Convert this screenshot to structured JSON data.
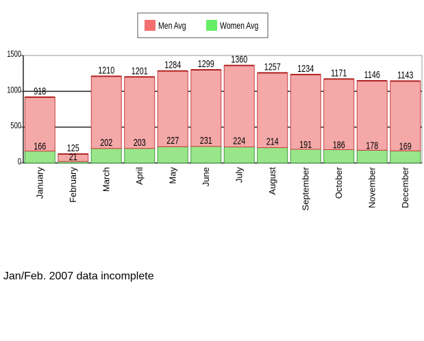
{
  "chart_data": {
    "type": "bar",
    "stacked": true,
    "title": "",
    "xlabel": "",
    "ylabel": "",
    "ylim": [
      0,
      1500
    ],
    "yticks": [
      0,
      500,
      1000,
      1500
    ],
    "grid": true,
    "legend_position": "top-center",
    "categories": [
      "January",
      "February",
      "March",
      "April",
      "May",
      "June",
      "July",
      "August",
      "September",
      "October",
      "November",
      "December"
    ],
    "totals": [
      918,
      125,
      1210,
      1201,
      1284,
      1299,
      1360,
      1257,
      1234,
      1171,
      1146,
      1143
    ],
    "series": [
      {
        "name": "Women Avg",
        "color": "#99e68a",
        "stroke": "#3c9a3c",
        "values": [
          166,
          21,
          202,
          203,
          227,
          231,
          224,
          214,
          191,
          186,
          178,
          169
        ]
      },
      {
        "name": "Men Avg",
        "color": "#f4a8a8",
        "stroke": "#c83c3c",
        "values": [
          752,
          104,
          1008,
          998,
          1057,
          1068,
          1136,
          1043,
          1043,
          985,
          968,
          974
        ]
      }
    ],
    "legend": [
      {
        "name": "Men Avg",
        "color": "#f47070"
      },
      {
        "name": "Women Avg",
        "color": "#66ee66"
      }
    ]
  },
  "footnote": ": Jan/Feb. 2007 data incomplete"
}
